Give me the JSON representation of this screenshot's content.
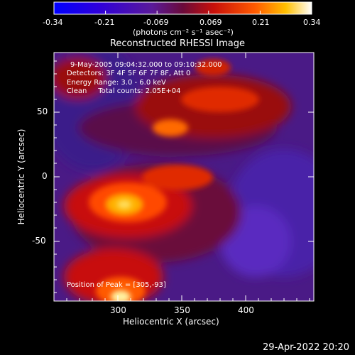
{
  "colorbar": {
    "ticks": [
      "-0.34",
      "-0.21",
      "-0.069",
      "0.069",
      "0.21",
      "0.34"
    ],
    "unit_label": "(photons cm⁻² s⁻¹ asec⁻²)",
    "range": [
      -0.34,
      0.34
    ]
  },
  "title": "Reconstructed RHESSI Image",
  "info": {
    "line1": "9-May-2005 09:04:32.000 to 09:10:32.000",
    "line2": "Detectors: 3F 4F 5F 6F 7F 8F, Att 0",
    "line3": "Energy Range: 3.0 - 6.0 keV",
    "line4": "Clean     Total counts: 2.05E+04"
  },
  "peak_label": "Position of Peak = [305,-93]",
  "axes": {
    "xlabel": "Heliocentric X (arcsec)",
    "ylabel": "Heliocentric Y (arcsec)",
    "xticks": [
      "300",
      "350",
      "400"
    ],
    "yticks": [
      "50",
      "0",
      "-50"
    ],
    "xlim": [
      254,
      442
    ],
    "ylim": [
      -96,
      96
    ]
  },
  "timestamp": "29-Apr-2022 20:20"
}
